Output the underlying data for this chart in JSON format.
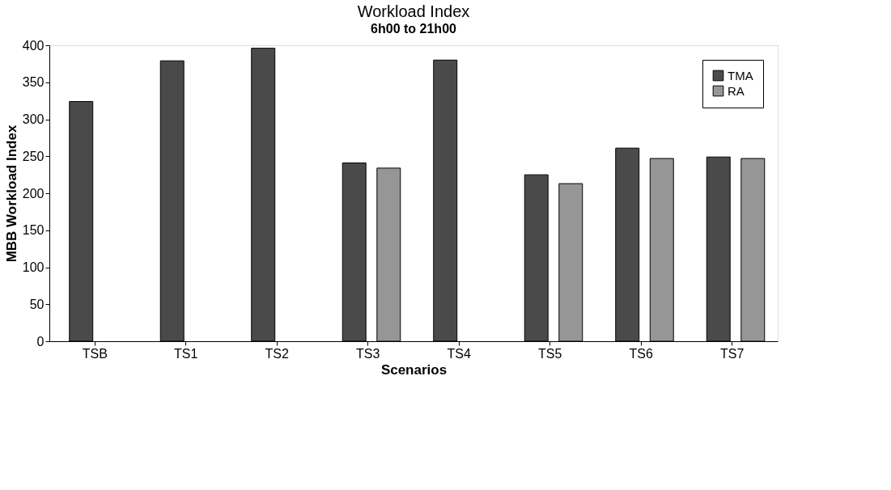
{
  "chart_data": {
    "type": "bar",
    "title": "Workload Index",
    "subtitle": "6h00 to 21h00",
    "xlabel": "Scenarios",
    "ylabel": "MBB Workload Index",
    "categories": [
      "TSB",
      "TS1",
      "TS2",
      "TS3",
      "TS4",
      "TS5",
      "TS6",
      "TS7"
    ],
    "series": [
      {
        "name": "TMA",
        "color": "#4a4a4a",
        "values": [
          324,
          379,
          396,
          241,
          380,
          225,
          261,
          249
        ]
      },
      {
        "name": "RA",
        "color": "#969696",
        "values": [
          null,
          null,
          null,
          234,
          null,
          213,
          247,
          247
        ]
      }
    ],
    "ylim": [
      0,
      400
    ],
    "yticks": [
      0,
      50,
      100,
      150,
      200,
      250,
      300,
      350,
      400
    ],
    "grid": false,
    "legend": "top right"
  }
}
